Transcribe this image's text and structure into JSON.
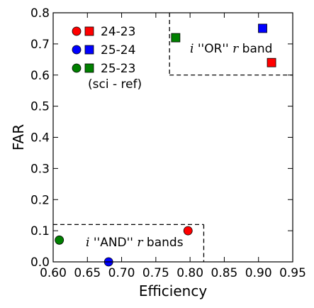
{
  "chart_data": {
    "type": "scatter",
    "xlabel": "Efficiency",
    "ylabel": "FAR",
    "xlim": [
      0.6,
      0.95
    ],
    "ylim": [
      0.0,
      0.8
    ],
    "xticks": [
      "0.60",
      "0.65",
      "0.70",
      "0.75",
      "0.80",
      "0.85",
      "0.90",
      "0.95"
    ],
    "yticks": [
      "0.0",
      "0.1",
      "0.2",
      "0.3",
      "0.4",
      "0.5",
      "0.6",
      "0.7",
      "0.8"
    ],
    "legend": {
      "placement": "top-left",
      "entries": [
        {
          "label": "24-23",
          "color": "#ff0000"
        },
        {
          "label": "25-24",
          "color": "#0000ff"
        },
        {
          "label": "25-23",
          "color": "#008000"
        }
      ],
      "note": "(sci - ref)"
    },
    "marker_types": {
      "circle": "i \"AND\" r bands",
      "square": "i \"OR\" r band"
    },
    "points": [
      {
        "x": 0.797,
        "y": 0.1,
        "marker": "circle",
        "color": "#ff0000"
      },
      {
        "x": 0.681,
        "y": 0.0,
        "marker": "circle",
        "color": "#0000ff"
      },
      {
        "x": 0.609,
        "y": 0.07,
        "marker": "circle",
        "color": "#008000"
      },
      {
        "x": 0.919,
        "y": 0.64,
        "marker": "square",
        "color": "#ff0000"
      },
      {
        "x": 0.906,
        "y": 0.75,
        "marker": "square",
        "color": "#0000ff"
      },
      {
        "x": 0.779,
        "y": 0.72,
        "marker": "square",
        "color": "#008000"
      }
    ],
    "regions": [
      {
        "label_var1": "i",
        "label_text": " ''OR'' ",
        "label_var2": "r",
        "label_end": " band",
        "x": [
          0.77,
          0.95
        ],
        "y": [
          0.6,
          0.8
        ]
      },
      {
        "label_var1": "i",
        "label_text": " ''AND'' ",
        "label_var2": "r",
        "label_end": " bands",
        "x": [
          0.6,
          0.82
        ],
        "y": [
          0.0,
          0.12
        ]
      }
    ]
  }
}
